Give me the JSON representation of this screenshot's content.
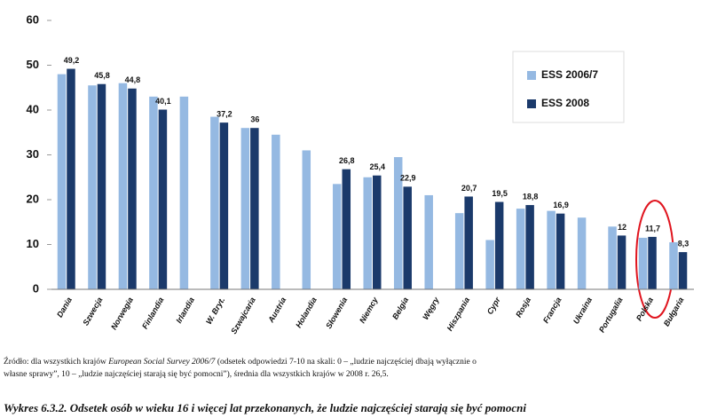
{
  "chart_data": {
    "type": "bar",
    "categories": [
      "Dania",
      "Szwecja",
      "Norwegia",
      "Finlandia",
      "Irlandia",
      "W. Bryt.",
      "Szwajcaria",
      "Austria",
      "Holandia",
      "Słowenia",
      "Niemcy",
      "Belgia",
      "Węgry",
      "Hiszpania",
      "Cypr",
      "Rosja",
      "Francja",
      "Ukraina",
      "Portugalia",
      "Polska",
      "Bułgaria"
    ],
    "series": [
      {
        "name": "ESS 2006/7",
        "color": "#95b9e2",
        "values": [
          48,
          45.5,
          46,
          43,
          43,
          38.5,
          36,
          34.5,
          31,
          23.5,
          25,
          29.5,
          21,
          17,
          11,
          18,
          17.5,
          16,
          14,
          11.5,
          10.5
        ]
      },
      {
        "name": "ESS 2008",
        "color": "#1b3a6b",
        "values": [
          49.2,
          45.8,
          44.8,
          40.1,
          null,
          37.2,
          36,
          null,
          null,
          26.8,
          25.4,
          22.9,
          null,
          20.7,
          19.5,
          18.8,
          16.9,
          null,
          12,
          11.7,
          8.3
        ],
        "value_labels": [
          "49,2",
          "45,8",
          "44,8",
          "40,1",
          null,
          "37,2",
          "36",
          null,
          null,
          "26,8",
          "25,4",
          "22,9",
          null,
          "20,7",
          "19,5",
          "18,8",
          "16,9",
          null,
          "12",
          "11,7",
          "8,3"
        ]
      }
    ],
    "ylim": [
      0,
      60
    ],
    "yticks": [
      0,
      10,
      20,
      30,
      40,
      50,
      60
    ],
    "grid": false,
    "legend": "upper right",
    "source": [
      "Źródło: dla wszystkich krajów ",
      "European Social Survey 2006/7",
      " (odsetek odpowiedzi 7-10 na skali: 0 – „ludzie najczęściej dbają wyłącznie o"
    ],
    "source_line2": "własne sprawy”, 10 – „ludzie najczęściej starają się być pomocni”), średnia dla wszystkich krajów w 2008 r. 26,5.",
    "caption": "Wykres 6.3.2. Odsetek osób w wieku 16 i więcej lat przekonanych, że ludzie najczęściej starają się być pomocni"
  }
}
